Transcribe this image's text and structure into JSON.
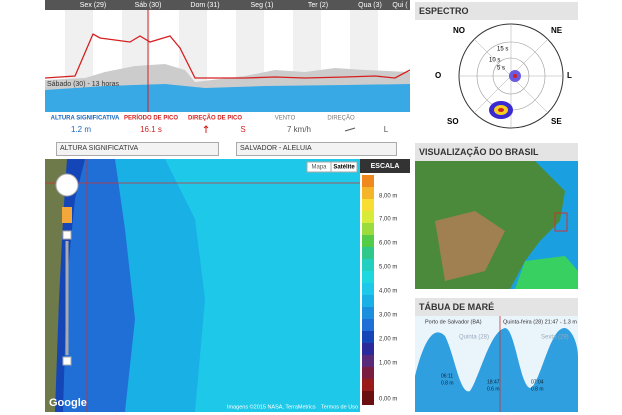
{
  "forecast": {
    "days": [
      "Sex (29)",
      "Sáb (30)",
      "Dom (31)",
      "Seg (1)",
      "Ter (2)",
      "Qua (3)",
      "Qui ("
    ],
    "hover_label": "Sábado (30) - 13 horas",
    "stats": [
      {
        "label": "ALTURA SIGNIFICATIVA",
        "value": "1.2 m"
      },
      {
        "label": "PERÍODO DE PICO",
        "value": "16.1 s"
      },
      {
        "label": "DIREÇÃO DE PICO",
        "value": "S"
      },
      {
        "label": "VENTO",
        "value": "7 km/h"
      },
      {
        "label": "DIREÇÃO",
        "value": "L"
      }
    ]
  },
  "controls": {
    "variable": "ALTURA SIGNIFICATIVA",
    "location": "SALVADOR - ALELUIA"
  },
  "map": {
    "map_button": "Mapa",
    "satellite_button": "Satélite",
    "scale_title": "ESCALA",
    "scale_labels": [
      "8,00 m",
      "7,00 m",
      "6,00 m",
      "5,00 m",
      "4,00 m",
      "3,00 m",
      "2,00 m",
      "1,00 m",
      "0,00 m"
    ],
    "google": "Google",
    "attribution": "Imagens ©2015 NASA, TerraMetrics",
    "terms": "Termos de Uso"
  },
  "spectrum": {
    "title": "ESPECTRO",
    "directions": [
      "NO",
      "NE",
      "O",
      "L",
      "SO",
      "SE"
    ],
    "periods": [
      "15 s",
      "10 s",
      "5 s"
    ]
  },
  "brazil": {
    "title": "VISUALIZAÇÃO DO BRASIL"
  },
  "tide": {
    "title": "TÁBUA DE MARÉ",
    "station": "Porto de Salvador (BA)",
    "hover": "Quinta-feira (28) 21:47 - 1.3 m",
    "days": [
      "Quinta (28)",
      "Sexta (29)"
    ],
    "extremes": [
      {
        "time": "06:11",
        "height": "0.8 m"
      },
      {
        "time": "18:47",
        "height": "0.6 m"
      },
      {
        "time": "07:04",
        "height": "0.8 m"
      }
    ]
  }
}
